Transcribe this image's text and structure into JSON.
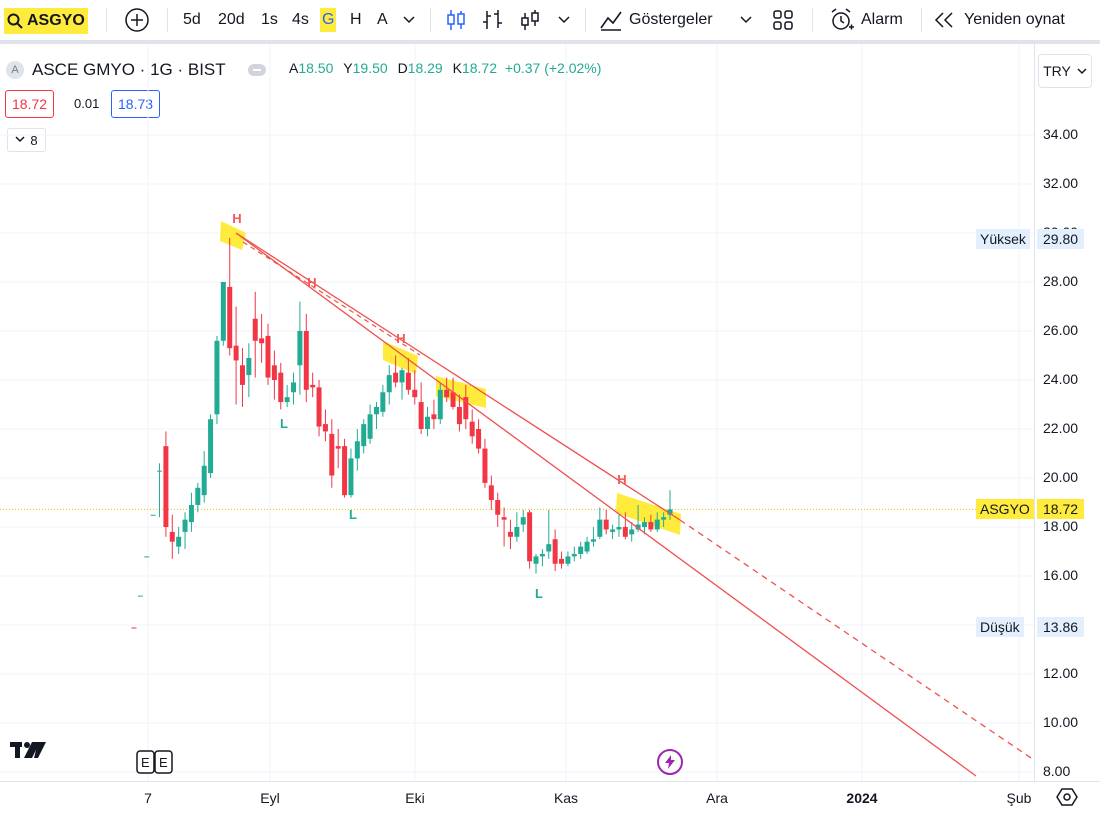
{
  "toolbar": {
    "symbol": "ASGYO",
    "intervals": [
      "5d",
      "20d",
      "1s",
      "4s",
      "G",
      "H",
      "A"
    ],
    "active_interval": "G",
    "indicators_label": "Göstergeler",
    "alarm_label": "Alarm",
    "replay_label": "Yeniden oynat"
  },
  "legend": {
    "logo_letter": "A",
    "title": "ASCE GMYO · 1G · BIST",
    "open_key": "A",
    "open": "18.50",
    "high_key": "Y",
    "high": "19.50",
    "low_key": "D",
    "low": "18.29",
    "close_key": "K",
    "close": "18.72",
    "change": "+0.37 (+2.02%)",
    "sell_price": "18.72",
    "spread": "0.01",
    "buy_price": "18.73",
    "indicator_count": "8"
  },
  "currency": "TRY",
  "price_axis": {
    "labels": [
      "34.00",
      "32.00",
      "30.00",
      "28.00",
      "26.00",
      "24.00",
      "22.00",
      "20.00",
      "18.00",
      "16.00",
      "14.00",
      "12.00",
      "10.00",
      "8.00"
    ],
    "high_label": "Yüksek",
    "high_value": "29.80",
    "low_label": "Düşük",
    "low_value": "13.86",
    "last_label": "ASGYO",
    "last_value": "18.72"
  },
  "time_axis": {
    "labels": [
      "7",
      "Eyl",
      "Eki",
      "Kas",
      "Ara",
      "2024",
      "Şub"
    ]
  },
  "annotations": {
    "highs": [
      "H",
      "H",
      "H",
      "H"
    ],
    "lows": [
      "L",
      "L",
      "L"
    ]
  },
  "colors": {
    "up": "#22ab94",
    "down": "#f23645",
    "trendline": "#f0504c",
    "highlight": "#ffeb3b",
    "accent": "#2962ff"
  },
  "chart_data": {
    "type": "candlestick",
    "ylim": [
      8,
      35
    ],
    "x_ticks": [
      "7",
      "Eyl",
      "Eki",
      "Kas",
      "Ara",
      "2024",
      "Şub"
    ],
    "candles": [
      {
        "o": 13.9,
        "h": 13.9,
        "l": 13.86,
        "c": 13.86
      },
      {
        "o": 15.2,
        "h": 15.2,
        "l": 15.2,
        "c": 15.2
      },
      {
        "o": 16.8,
        "h": 16.8,
        "l": 16.8,
        "c": 16.8
      },
      {
        "o": 18.5,
        "h": 18.5,
        "l": 18.5,
        "c": 18.5
      },
      {
        "o": 20.3,
        "h": 20.6,
        "l": 18.4,
        "c": 20.3
      },
      {
        "o": 21.3,
        "h": 21.9,
        "l": 17.6,
        "c": 18.0
      },
      {
        "o": 17.8,
        "h": 18.5,
        "l": 16.7,
        "c": 17.4
      },
      {
        "o": 17.2,
        "h": 18.0,
        "l": 16.9,
        "c": 17.6
      },
      {
        "o": 17.8,
        "h": 18.6,
        "l": 17.1,
        "c": 18.3
      },
      {
        "o": 18.2,
        "h": 19.4,
        "l": 17.8,
        "c": 18.9
      },
      {
        "o": 18.9,
        "h": 19.8,
        "l": 18.6,
        "c": 19.6
      },
      {
        "o": 19.3,
        "h": 21.1,
        "l": 19.0,
        "c": 20.5
      },
      {
        "o": 20.2,
        "h": 22.6,
        "l": 20.0,
        "c": 22.4
      },
      {
        "o": 22.6,
        "h": 25.8,
        "l": 22.2,
        "c": 25.6
      },
      {
        "o": 25.6,
        "h": 28.0,
        "l": 25.4,
        "c": 28.0
      },
      {
        "o": 27.8,
        "h": 29.8,
        "l": 25.0,
        "c": 25.3
      },
      {
        "o": 25.4,
        "h": 27.0,
        "l": 23.0,
        "c": 24.8
      },
      {
        "o": 24.6,
        "h": 25.3,
        "l": 22.9,
        "c": 23.8
      },
      {
        "o": 24.2,
        "h": 25.5,
        "l": 23.3,
        "c": 24.9
      },
      {
        "o": 26.5,
        "h": 27.6,
        "l": 24.1,
        "c": 25.6
      },
      {
        "o": 25.7,
        "h": 26.7,
        "l": 24.7,
        "c": 25.5
      },
      {
        "o": 25.8,
        "h": 26.3,
        "l": 23.8,
        "c": 24.1
      },
      {
        "o": 24.6,
        "h": 25.2,
        "l": 23.2,
        "c": 24.0
      },
      {
        "o": 24.3,
        "h": 24.7,
        "l": 22.8,
        "c": 23.1
      },
      {
        "o": 23.1,
        "h": 23.8,
        "l": 22.9,
        "c": 23.3
      },
      {
        "o": 23.5,
        "h": 24.3,
        "l": 23.0,
        "c": 23.9
      },
      {
        "o": 24.6,
        "h": 27.2,
        "l": 23.4,
        "c": 26.0
      },
      {
        "o": 26.0,
        "h": 26.7,
        "l": 23.1,
        "c": 23.6
      },
      {
        "o": 23.8,
        "h": 24.3,
        "l": 23.3,
        "c": 23.7
      },
      {
        "o": 23.7,
        "h": 24.0,
        "l": 21.7,
        "c": 22.1
      },
      {
        "o": 22.2,
        "h": 22.8,
        "l": 21.5,
        "c": 21.9
      },
      {
        "o": 21.8,
        "h": 22.4,
        "l": 19.6,
        "c": 20.1
      },
      {
        "o": 21.3,
        "h": 22.0,
        "l": 20.4,
        "c": 21.2
      },
      {
        "o": 21.3,
        "h": 21.6,
        "l": 19.2,
        "c": 19.3
      },
      {
        "o": 19.3,
        "h": 21.2,
        "l": 19.2,
        "c": 20.8
      },
      {
        "o": 20.8,
        "h": 22.0,
        "l": 20.3,
        "c": 21.5
      },
      {
        "o": 21.3,
        "h": 22.4,
        "l": 21.0,
        "c": 22.2
      },
      {
        "o": 21.6,
        "h": 23.0,
        "l": 21.4,
        "c": 22.6
      },
      {
        "o": 22.6,
        "h": 23.1,
        "l": 22.0,
        "c": 22.9
      },
      {
        "o": 22.7,
        "h": 23.8,
        "l": 22.5,
        "c": 23.5
      },
      {
        "o": 23.5,
        "h": 24.6,
        "l": 23.0,
        "c": 24.2
      },
      {
        "o": 24.3,
        "h": 25.0,
        "l": 23.7,
        "c": 23.9
      },
      {
        "o": 23.9,
        "h": 24.5,
        "l": 23.2,
        "c": 24.4
      },
      {
        "o": 24.3,
        "h": 24.9,
        "l": 23.4,
        "c": 23.6
      },
      {
        "o": 23.6,
        "h": 24.4,
        "l": 23.0,
        "c": 23.3
      },
      {
        "o": 23.1,
        "h": 23.9,
        "l": 21.8,
        "c": 22.0
      },
      {
        "o": 22.0,
        "h": 22.9,
        "l": 21.7,
        "c": 22.5
      },
      {
        "o": 22.6,
        "h": 23.2,
        "l": 22.0,
        "c": 22.4
      },
      {
        "o": 22.4,
        "h": 23.9,
        "l": 22.2,
        "c": 23.6
      },
      {
        "o": 23.6,
        "h": 24.1,
        "l": 23.1,
        "c": 23.3
      },
      {
        "o": 23.5,
        "h": 24.1,
        "l": 22.8,
        "c": 22.9
      },
      {
        "o": 22.9,
        "h": 23.4,
        "l": 21.9,
        "c": 22.2
      },
      {
        "o": 23.3,
        "h": 23.8,
        "l": 22.0,
        "c": 22.4
      },
      {
        "o": 22.3,
        "h": 22.8,
        "l": 21.4,
        "c": 21.7
      },
      {
        "o": 22.0,
        "h": 22.4,
        "l": 21.0,
        "c": 21.2
      },
      {
        "o": 21.2,
        "h": 21.6,
        "l": 19.6,
        "c": 19.8
      },
      {
        "o": 19.7,
        "h": 20.1,
        "l": 18.7,
        "c": 19.1
      },
      {
        "o": 19.1,
        "h": 19.4,
        "l": 18.0,
        "c": 18.5
      },
      {
        "o": 18.4,
        "h": 18.8,
        "l": 17.2,
        "c": 18.3
      },
      {
        "o": 17.8,
        "h": 18.3,
        "l": 17.1,
        "c": 17.6
      },
      {
        "o": 17.6,
        "h": 18.6,
        "l": 17.4,
        "c": 18.0
      },
      {
        "o": 18.1,
        "h": 18.7,
        "l": 17.8,
        "c": 18.4
      },
      {
        "o": 18.6,
        "h": 18.7,
        "l": 16.3,
        "c": 16.6
      },
      {
        "o": 16.5,
        "h": 16.9,
        "l": 16.1,
        "c": 16.8
      },
      {
        "o": 16.8,
        "h": 17.1,
        "l": 16.4,
        "c": 16.9
      },
      {
        "o": 17.0,
        "h": 18.7,
        "l": 16.7,
        "c": 17.3
      },
      {
        "o": 17.5,
        "h": 17.9,
        "l": 16.2,
        "c": 16.5
      },
      {
        "o": 16.7,
        "h": 17.0,
        "l": 16.3,
        "c": 16.5
      },
      {
        "o": 16.5,
        "h": 17.0,
        "l": 16.4,
        "c": 16.8
      },
      {
        "o": 16.8,
        "h": 17.2,
        "l": 16.6,
        "c": 16.9
      },
      {
        "o": 16.9,
        "h": 17.4,
        "l": 16.7,
        "c": 17.2
      },
      {
        "o": 17.0,
        "h": 17.6,
        "l": 16.9,
        "c": 17.4
      },
      {
        "o": 17.4,
        "h": 18.0,
        "l": 17.2,
        "c": 17.5
      },
      {
        "o": 17.6,
        "h": 18.8,
        "l": 17.5,
        "c": 18.3
      },
      {
        "o": 18.3,
        "h": 18.7,
        "l": 17.7,
        "c": 17.9
      },
      {
        "o": 17.8,
        "h": 18.1,
        "l": 17.5,
        "c": 17.9
      },
      {
        "o": 17.9,
        "h": 18.5,
        "l": 17.6,
        "c": 18.0
      },
      {
        "o": 18.0,
        "h": 18.6,
        "l": 17.5,
        "c": 17.6
      },
      {
        "o": 17.7,
        "h": 18.2,
        "l": 17.4,
        "c": 17.9
      },
      {
        "o": 17.9,
        "h": 18.9,
        "l": 17.8,
        "c": 18.1
      },
      {
        "o": 18.0,
        "h": 18.4,
        "l": 17.7,
        "c": 18.2
      },
      {
        "o": 18.2,
        "h": 18.5,
        "l": 17.8,
        "c": 17.9
      },
      {
        "o": 17.9,
        "h": 18.6,
        "l": 17.8,
        "c": 18.3
      },
      {
        "o": 18.3,
        "h": 18.6,
        "l": 18.0,
        "c": 18.4
      },
      {
        "o": 18.5,
        "h": 19.5,
        "l": 18.29,
        "c": 18.72
      }
    ]
  }
}
